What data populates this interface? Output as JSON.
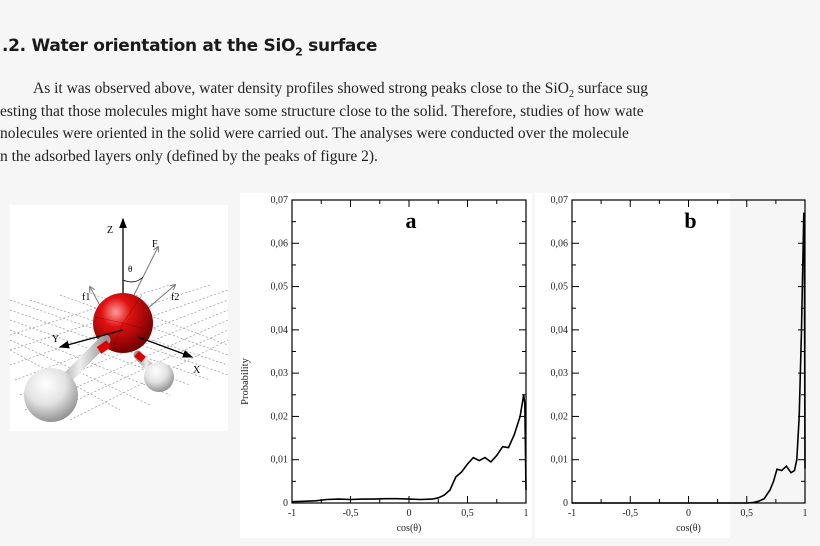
{
  "section": {
    "number": ".2.",
    "title_before": "Water orientation at the SiO",
    "title_sub": "2",
    "title_after": " surface"
  },
  "paragraph": {
    "line1_a": "As it was observed above, water density profiles showed strong peaks close to the SiO",
    "line1_sub": "2",
    "line1_b": " surface sug",
    "line2": "esting that those molecules might have some structure close to the solid. Therefore, studies of how wate",
    "line3": "nolecules were oriented in the solid were carried out. The analyses were conducted over the molecule",
    "line4": "n the adsorbed layers only (defined by the peaks of figure 2)."
  },
  "molecule_figure": {
    "labels": {
      "z": "Z",
      "f": "F",
      "theta": "θ",
      "f1": "f1",
      "f2": "f2",
      "y": "Y",
      "x": "X"
    },
    "colors": {
      "oxygen": "#d00000",
      "hydrogen": "#e8e8e8"
    }
  },
  "chart_data": [
    {
      "type": "line",
      "panel_label": "a",
      "xlabel": "cos(θ)",
      "ylabel": "Probability",
      "xlim": [
        -1,
        1
      ],
      "ylim": [
        0,
        0.07
      ],
      "xticks": [
        -1,
        -0.5,
        0,
        0.5,
        1
      ],
      "xtick_labels": [
        "-1",
        "-0,5",
        "0",
        "0,5",
        "1"
      ],
      "yticks": [
        0,
        0.01,
        0.02,
        0.03,
        0.04,
        0.05,
        0.06,
        0.07
      ],
      "ytick_labels": [
        "0",
        "0,01",
        "0,02",
        "0,03",
        "0,04",
        "0,05",
        "0,06",
        "0,07"
      ],
      "grid": false,
      "x": [
        -1,
        -0.9,
        -0.8,
        -0.7,
        -0.6,
        -0.5,
        -0.4,
        -0.3,
        -0.2,
        -0.1,
        0,
        0.1,
        0.2,
        0.25,
        0.3,
        0.35,
        0.4,
        0.45,
        0.5,
        0.55,
        0.6,
        0.65,
        0.7,
        0.75,
        0.8,
        0.85,
        0.9,
        0.95,
        0.98,
        0.99,
        1.0
      ],
      "y": [
        0.0003,
        0.0004,
        0.0005,
        0.0008,
        0.0009,
        0.0008,
        0.0009,
        0.0009,
        0.001,
        0.001,
        0.0009,
        0.0008,
        0.0009,
        0.0012,
        0.0018,
        0.003,
        0.006,
        0.0072,
        0.009,
        0.0105,
        0.0098,
        0.0105,
        0.0095,
        0.011,
        0.013,
        0.0128,
        0.0158,
        0.02,
        0.025,
        0.023,
        0.003
      ]
    },
    {
      "type": "line",
      "panel_label": "b",
      "xlabel": "cos(θ)",
      "ylabel": "",
      "xlim": [
        -1,
        1
      ],
      "ylim": [
        0,
        0.07
      ],
      "xticks": [
        -1,
        -0.5,
        0,
        0.5,
        1
      ],
      "xtick_labels": [
        "-1",
        "-0,5",
        "0",
        "0,5",
        "1"
      ],
      "yticks": [
        0,
        0.01,
        0.02,
        0.03,
        0.04,
        0.05,
        0.06,
        0.07
      ],
      "ytick_labels": [
        "0",
        "0,01",
        "0,02",
        "0,03",
        "0,04",
        "0,05",
        "0,06",
        "0,07"
      ],
      "grid": false,
      "x": [
        -1,
        0.5,
        0.55,
        0.6,
        0.65,
        0.7,
        0.73,
        0.76,
        0.8,
        0.84,
        0.88,
        0.91,
        0.93,
        0.95,
        0.97,
        0.99,
        0.995,
        1.0
      ],
      "y": [
        0,
        0,
        0.0001,
        0.0004,
        0.001,
        0.003,
        0.005,
        0.0078,
        0.0075,
        0.0085,
        0.007,
        0.0075,
        0.01,
        0.02,
        0.04,
        0.067,
        0.06,
        0.008
      ]
    }
  ]
}
